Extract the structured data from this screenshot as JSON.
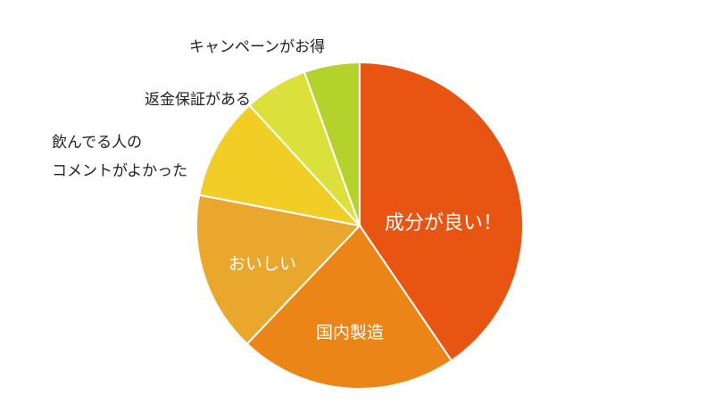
{
  "chart_data": {
    "type": "pie",
    "start": "12-o-clock",
    "direction": "clockwise",
    "categories": [
      "成分が良い！",
      "国内製造",
      "おいしい",
      "飲んでる人のコメントがよかった",
      "返金保証がある",
      "キャンペーンがお得"
    ],
    "display_labels": [
      [
        "成分が良い！"
      ],
      [
        "国内製造"
      ],
      [
        "おいしい"
      ],
      [
        "飲んでる人の",
        "コメントがよかった"
      ],
      [
        "返金保証がある"
      ],
      [
        "キャンペーンがお得"
      ]
    ],
    "label_placement": [
      "inside",
      "inside",
      "inside",
      "outside",
      "outside",
      "outside"
    ],
    "values": [
      40.5,
      21.6,
      15.9,
      10.2,
      6.3,
      5.5
    ],
    "value_unit": "%",
    "colors": [
      "#E85412",
      "#EB8518",
      "#E9A72E",
      "#F0CE25",
      "#DCE03A",
      "#B4D12C"
    ],
    "legend": "none",
    "title": ""
  }
}
